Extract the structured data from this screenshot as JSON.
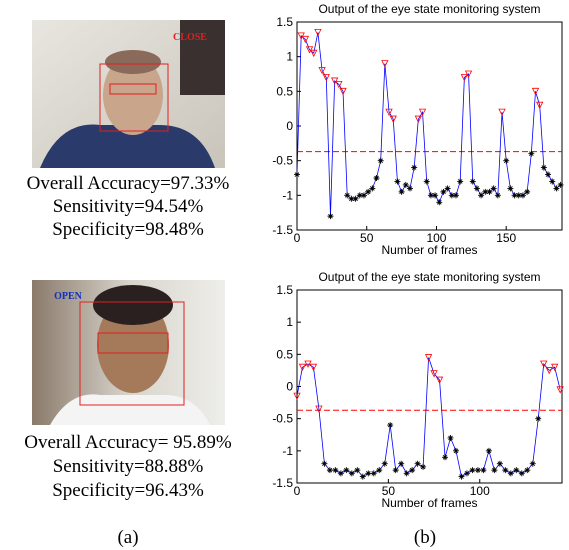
{
  "panels": [
    {
      "status": "CLOSE",
      "metrics": [
        "Overall Accuracy=97.33%",
        "Sensitivity=94.54%",
        "Specificity=98.48%"
      ]
    },
    {
      "status": "OPEN",
      "metrics": [
        "Overall Accuracy= 95.89%",
        "Sensitivity=88.88%",
        "Specificity=96.43%"
      ]
    }
  ],
  "captions": [
    "(a)",
    "(b)"
  ],
  "chart_data": [
    {
      "type": "line",
      "title": "Output of the eye state monitoring system",
      "xlabel": "Number of frames",
      "x": [
        0,
        3,
        6,
        9,
        12,
        15,
        18,
        21,
        24,
        27,
        30,
        33,
        36,
        39,
        42,
        45,
        48,
        51,
        54,
        57,
        60,
        63,
        66,
        69,
        72,
        75,
        78,
        81,
        84,
        87,
        90,
        93,
        96,
        99,
        102,
        105,
        108,
        111,
        114,
        117,
        120,
        123,
        126,
        129,
        132,
        135,
        138,
        141,
        144,
        147,
        150,
        153,
        156,
        159,
        162,
        165,
        168,
        171,
        174,
        177,
        180,
        183,
        186,
        189
      ],
      "series": [
        {
          "color": "#0000ff",
          "values": [
            -0.7,
            1.3,
            1.25,
            1.1,
            1.05,
            1.35,
            0.8,
            0.7,
            -1.3,
            0.65,
            0.6,
            0.5,
            -1.0,
            -1.05,
            -1.05,
            -1.0,
            -1.0,
            -0.95,
            -0.9,
            -0.75,
            -0.5,
            0.9,
            0.2,
            0.1,
            -0.8,
            -0.95,
            -0.85,
            -0.9,
            -0.6,
            0.1,
            0.2,
            -0.8,
            -1.0,
            -1.0,
            -1.1,
            -0.95,
            -0.9,
            -1.0,
            -1.0,
            -0.8,
            0.7,
            0.75,
            -0.8,
            -0.9,
            -1.0,
            -0.95,
            -0.95,
            -0.9,
            -1.0,
            0.2,
            -0.5,
            -0.9,
            -1.0,
            -1.0,
            -1.0,
            -0.95,
            -0.4,
            0.5,
            0.3,
            -0.6,
            -0.7,
            -0.8,
            -0.9,
            -0.85
          ]
        }
      ],
      "threshold": -0.37,
      "threshold_color": "#ff0000",
      "above_color": "#ff0000",
      "below_color": "#000000",
      "xlim": [
        0,
        190
      ],
      "xticks": [
        0,
        50,
        100,
        150
      ],
      "ylim": [
        -1.5,
        1.5
      ],
      "yticks": [
        -1.5,
        -1,
        -0.5,
        0,
        0.5,
        1,
        1.5
      ]
    },
    {
      "type": "line",
      "title": "Output of the eye state monitoring system",
      "xlabel": "Number of frames",
      "x": [
        0,
        3,
        6,
        9,
        12,
        15,
        18,
        21,
        24,
        27,
        30,
        33,
        36,
        39,
        42,
        45,
        48,
        51,
        54,
        57,
        60,
        63,
        66,
        69,
        72,
        75,
        78,
        81,
        84,
        87,
        90,
        93,
        96,
        99,
        102,
        105,
        108,
        111,
        114,
        117,
        120,
        123,
        126,
        129,
        132,
        135,
        138,
        141,
        144
      ],
      "series": [
        {
          "color": "#0000ff",
          "values": [
            -0.15,
            0.3,
            0.35,
            0.3,
            -0.35,
            -1.2,
            -1.3,
            -1.3,
            -1.35,
            -1.3,
            -1.35,
            -1.3,
            -1.4,
            -1.35,
            -1.35,
            -1.3,
            -1.2,
            -0.6,
            -1.3,
            -1.2,
            -1.35,
            -1.3,
            -1.2,
            -1.25,
            0.45,
            0.2,
            0.1,
            -1.1,
            -0.8,
            -1.0,
            -1.4,
            -1.35,
            -1.3,
            -1.3,
            -1.3,
            -1.0,
            -1.3,
            -1.2,
            -1.3,
            -1.35,
            -1.3,
            -1.35,
            -1.3,
            -1.2,
            -0.5,
            0.35,
            0.25,
            0.3,
            -0.05
          ]
        }
      ],
      "threshold": -0.37,
      "threshold_color": "#ff0000",
      "above_color": "#ff0000",
      "below_color": "#000000",
      "xlim": [
        0,
        145
      ],
      "xticks": [
        0,
        50,
        100
      ],
      "ylim": [
        -1.5,
        1.5
      ],
      "yticks": [
        -1.5,
        -1,
        -0.5,
        0,
        0.5,
        1,
        1.5
      ]
    }
  ]
}
